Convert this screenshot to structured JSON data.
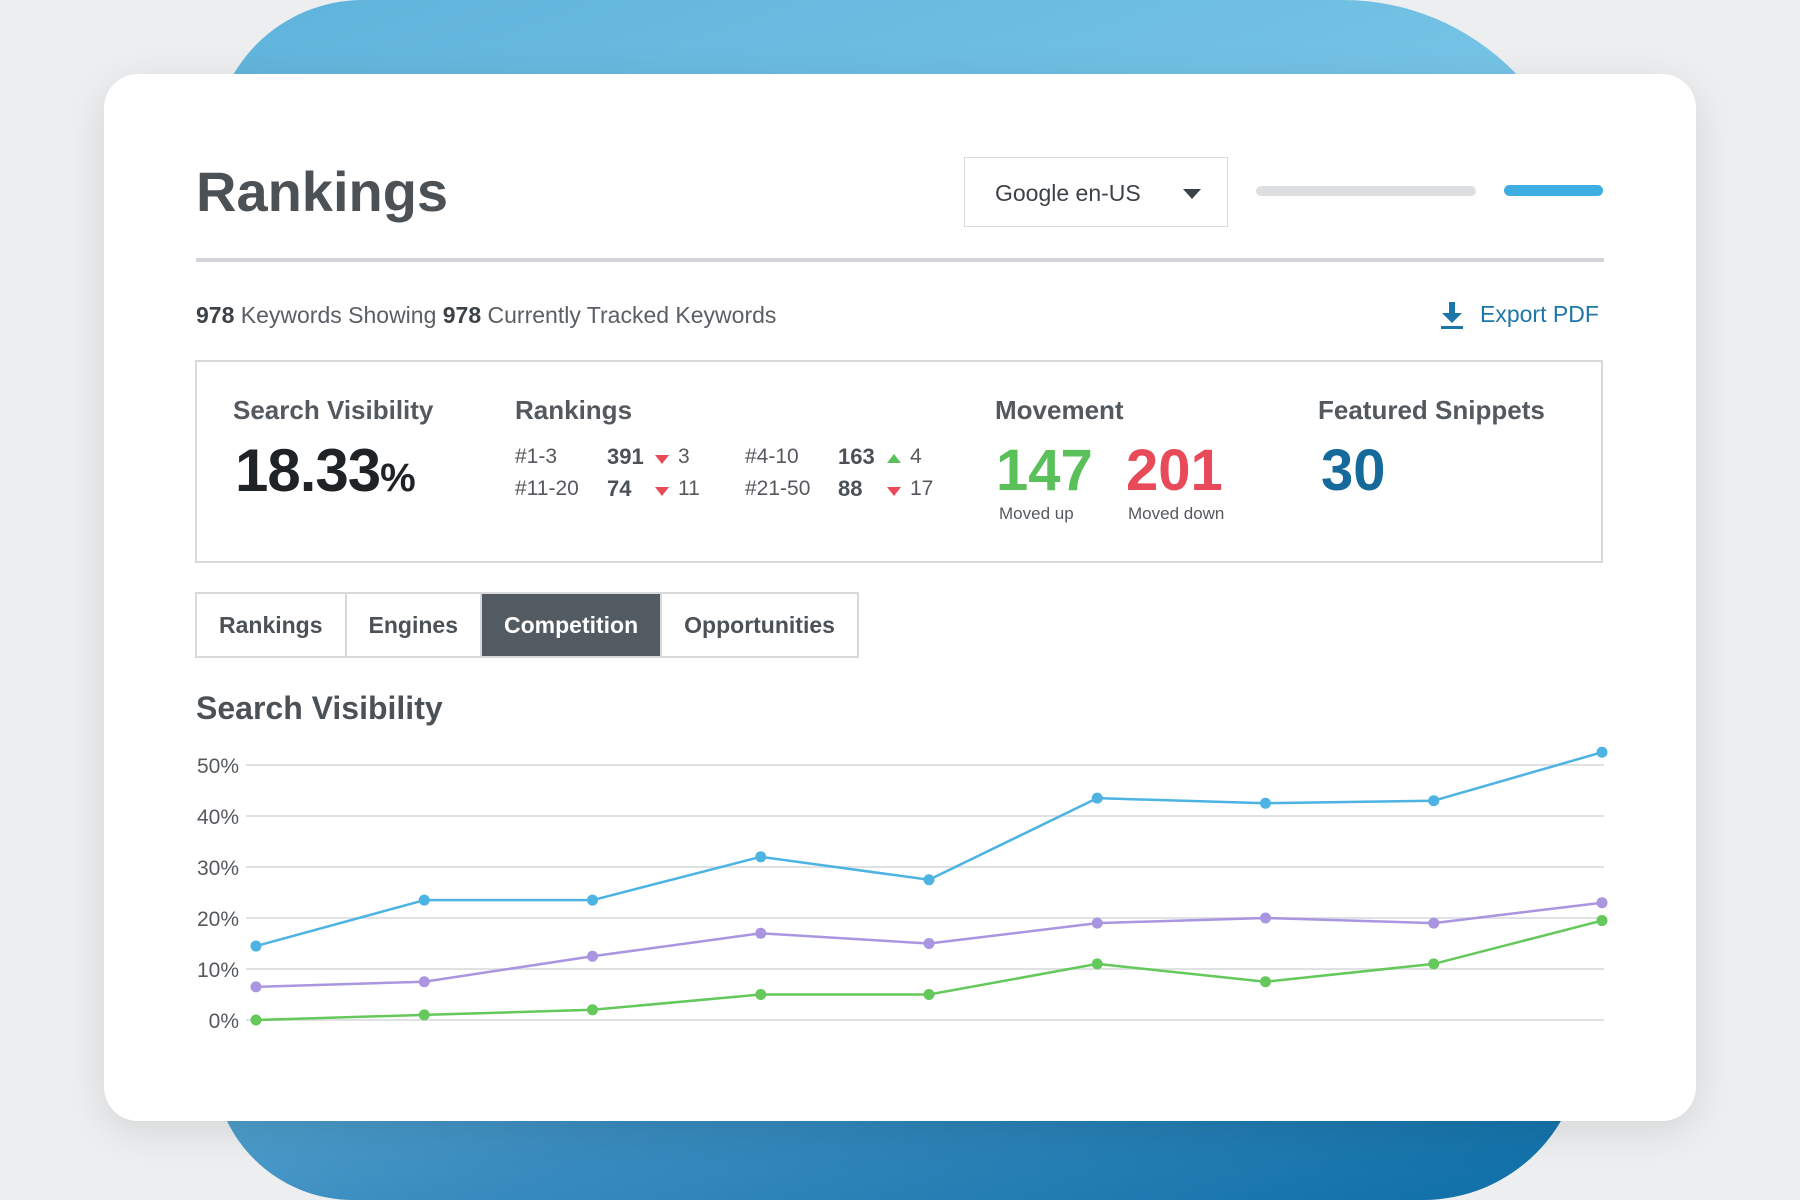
{
  "page": {
    "title": "Rankings"
  },
  "engine_select": {
    "value": "Google en-US"
  },
  "summary": {
    "keyword_count": "978",
    "showing_text": "Keywords Showing",
    "tracked_count": "978",
    "tracked_text": "Currently Tracked Keywords",
    "export_label": "Export PDF"
  },
  "stats": {
    "search_visibility": {
      "label": "Search Visibility",
      "value": "18.33",
      "unit": "%"
    },
    "rankings": {
      "label": "Rankings",
      "rows": [
        {
          "range": "#1-3",
          "count": "391",
          "direction": "down",
          "change": "3"
        },
        {
          "range": "#4-10",
          "count": "163",
          "direction": "up",
          "change": "4"
        },
        {
          "range": "#11-20",
          "count": "74",
          "direction": "down",
          "change": "11"
        },
        {
          "range": "#21-50",
          "count": "88",
          "direction": "down",
          "change": "17"
        }
      ]
    },
    "movement": {
      "label": "Movement",
      "up_value": "147",
      "up_label": "Moved up",
      "down_value": "201",
      "down_label": "Moved down"
    },
    "featured_snippets": {
      "label": "Featured Snippets",
      "value": "30"
    }
  },
  "tabs": [
    {
      "label": "Rankings",
      "active": false
    },
    {
      "label": "Engines",
      "active": false
    },
    {
      "label": "Competition",
      "active": true
    },
    {
      "label": "Opportunities",
      "active": false
    }
  ],
  "chart_section": {
    "title": "Search Visibility"
  },
  "chart_data": {
    "type": "line",
    "title": "Search Visibility",
    "xlabel": "",
    "ylabel": "",
    "ylim": [
      0,
      50
    ],
    "y_ticks": [
      "0%",
      "10%",
      "20%",
      "30%",
      "40%",
      "50%"
    ],
    "x": [
      1,
      2,
      3,
      4,
      5,
      6,
      7,
      8,
      9
    ],
    "grid": true,
    "series": [
      {
        "color": "#4cb3e3",
        "values": [
          14.5,
          23.5,
          23.5,
          32.0,
          27.5,
          43.5,
          42.5,
          43.0,
          52.5
        ]
      },
      {
        "color": "#a995e0",
        "values": [
          6.5,
          7.5,
          12.5,
          17.0,
          15.0,
          19.0,
          20.0,
          19.0,
          23.0
        ]
      },
      {
        "color": "#64c85a",
        "values": [
          0.0,
          1.0,
          2.0,
          5.0,
          5.0,
          11.0,
          7.5,
          11.0,
          19.5
        ]
      }
    ]
  },
  "colors": {
    "accent_blue": "#1c77a8",
    "moved_up": "#5ac15a",
    "moved_down": "#e84a5a",
    "tab_active": "#525b62"
  },
  "icons": {
    "export": "download-icon",
    "engine_caret": "chevron-down-icon"
  }
}
